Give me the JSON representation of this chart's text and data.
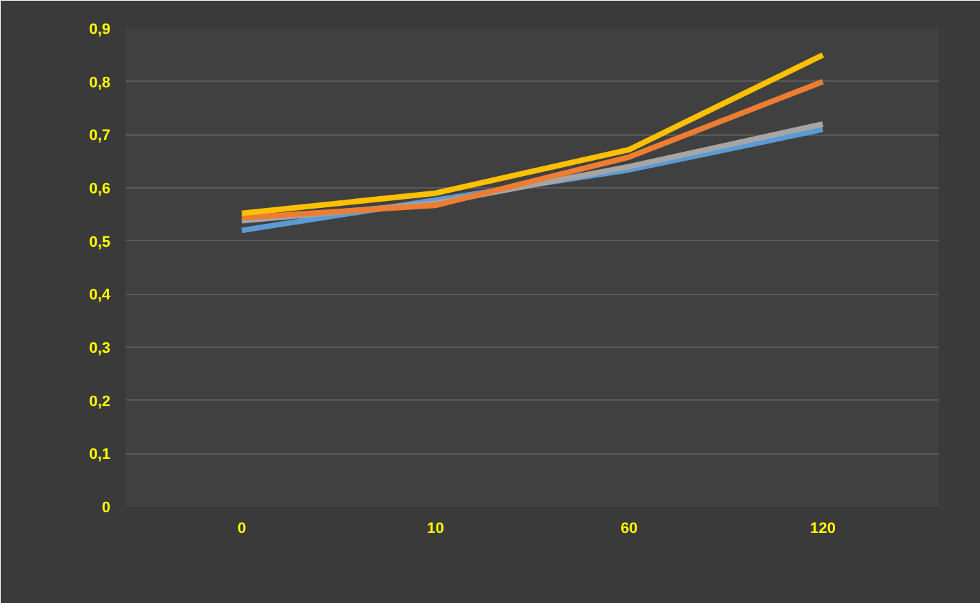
{
  "chart_data": {
    "type": "line",
    "categories": [
      "0",
      "10",
      "60",
      "120"
    ],
    "series": [
      {
        "color": "#5b9bd5",
        "values": [
          0.52,
          0.577,
          0.634,
          0.71
        ]
      },
      {
        "color": "#a5a5a5",
        "values": [
          0.538,
          0.571,
          0.64,
          0.72
        ]
      },
      {
        "color": "#ed7d31",
        "values": [
          0.544,
          0.567,
          0.658,
          0.8
        ]
      },
      {
        "color": "#ffc000",
        "values": [
          0.552,
          0.59,
          0.672,
          0.85
        ]
      }
    ],
    "ylim": [
      0,
      0.9
    ],
    "yticks": [
      {
        "value": 0,
        "label": "0"
      },
      {
        "value": 0.1,
        "label": "0,1"
      },
      {
        "value": 0.2,
        "label": "0,2"
      },
      {
        "value": 0.3,
        "label": "0,3"
      },
      {
        "value": 0.4,
        "label": "0,4"
      },
      {
        "value": 0.5,
        "label": "0,5"
      },
      {
        "value": 0.6,
        "label": "0,6"
      },
      {
        "value": 0.7,
        "label": "0,7"
      },
      {
        "value": 0.8,
        "label": "0,8"
      },
      {
        "value": 0.9,
        "label": "0,9"
      }
    ],
    "grid": "y",
    "marker": "none",
    "line_style": "solid"
  }
}
